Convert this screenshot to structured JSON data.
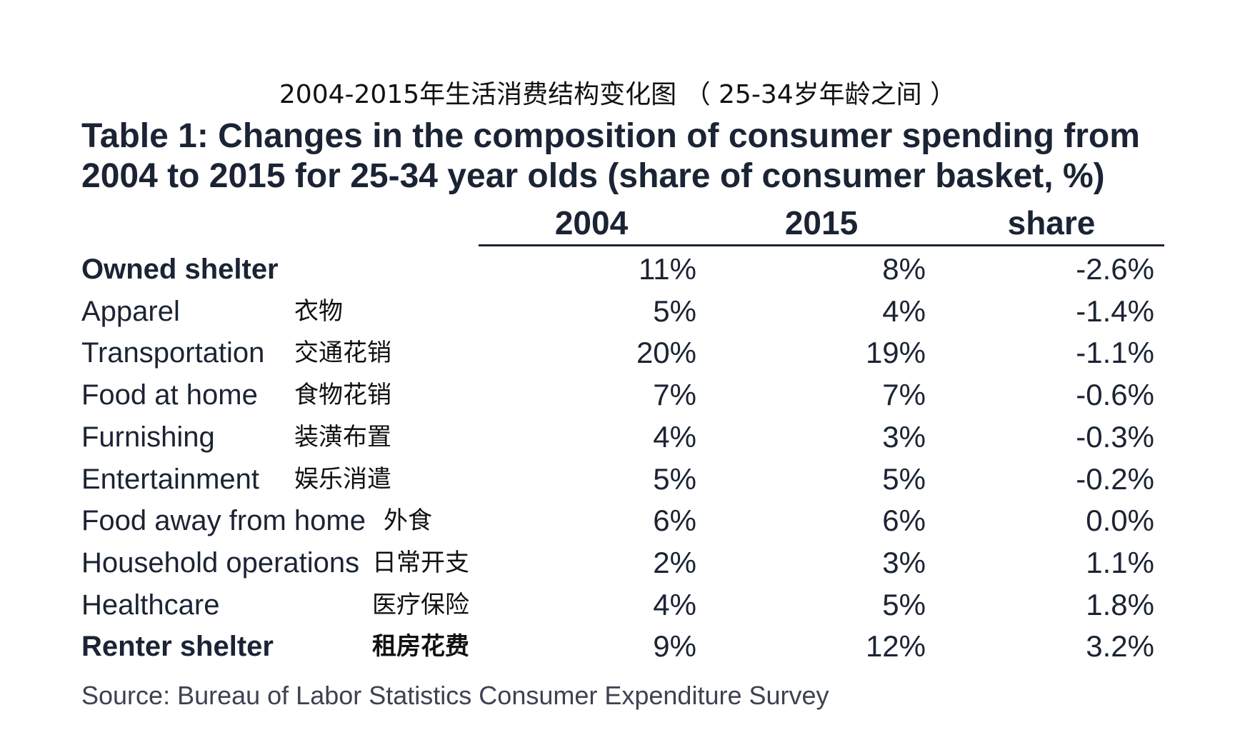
{
  "cn_title": "2004-2015年生活消费结构变化图 （ 25-34岁年龄之间 ）",
  "chart_data": {
    "type": "table",
    "title": "Table 1: Changes in the composition of consumer spending from 2004 to 2015 for 25-34 year olds (share of consumer basket, %)",
    "columns": [
      "2004",
      "2015",
      "share"
    ],
    "rows": [
      {
        "label": "Owned shelter",
        "label_cn": "",
        "v2004": "11%",
        "v2015": "8%",
        "share": "-2.6%",
        "bold": true
      },
      {
        "label": "Apparel",
        "label_cn": "衣物",
        "v2004": "5%",
        "v2015": "4%",
        "share": "-1.4%",
        "bold": false
      },
      {
        "label": "Transportation",
        "label_cn": "交通花销",
        "v2004": "20%",
        "v2015": "19%",
        "share": "-1.1%",
        "bold": false
      },
      {
        "label": "Food at home",
        "label_cn": "食物花销",
        "v2004": "7%",
        "v2015": "7%",
        "share": "-0.6%",
        "bold": false
      },
      {
        "label": "Furnishing",
        "label_cn": "装潢布置",
        "v2004": "4%",
        "v2015": "3%",
        "share": "-0.3%",
        "bold": false
      },
      {
        "label": "Entertainment",
        "label_cn": "娱乐消遣",
        "v2004": "5%",
        "v2015": "5%",
        "share": "-0.2%",
        "bold": false
      },
      {
        "label": "Food away from home",
        "label_cn": "外食",
        "v2004": "6%",
        "v2015": "6%",
        "share": "0.0%",
        "bold": false
      },
      {
        "label": "Household operations",
        "label_cn": "日常开支",
        "v2004": "2%",
        "v2015": "3%",
        "share": "1.1%",
        "bold": false
      },
      {
        "label": "Healthcare",
        "label_cn": "医疗保险",
        "v2004": "4%",
        "v2015": "5%",
        "share": "1.8%",
        "bold": false
      },
      {
        "label": "Renter shelter",
        "label_cn": "租房花费",
        "v2004": "9%",
        "v2015": "12%",
        "share": "3.2%",
        "bold": true
      }
    ],
    "source": "Source: Bureau of Labor Statistics Consumer Expenditure Survey"
  },
  "colors": {
    "text": "#1b2434",
    "source_text": "#3c4250",
    "rule": "#1b2434"
  }
}
